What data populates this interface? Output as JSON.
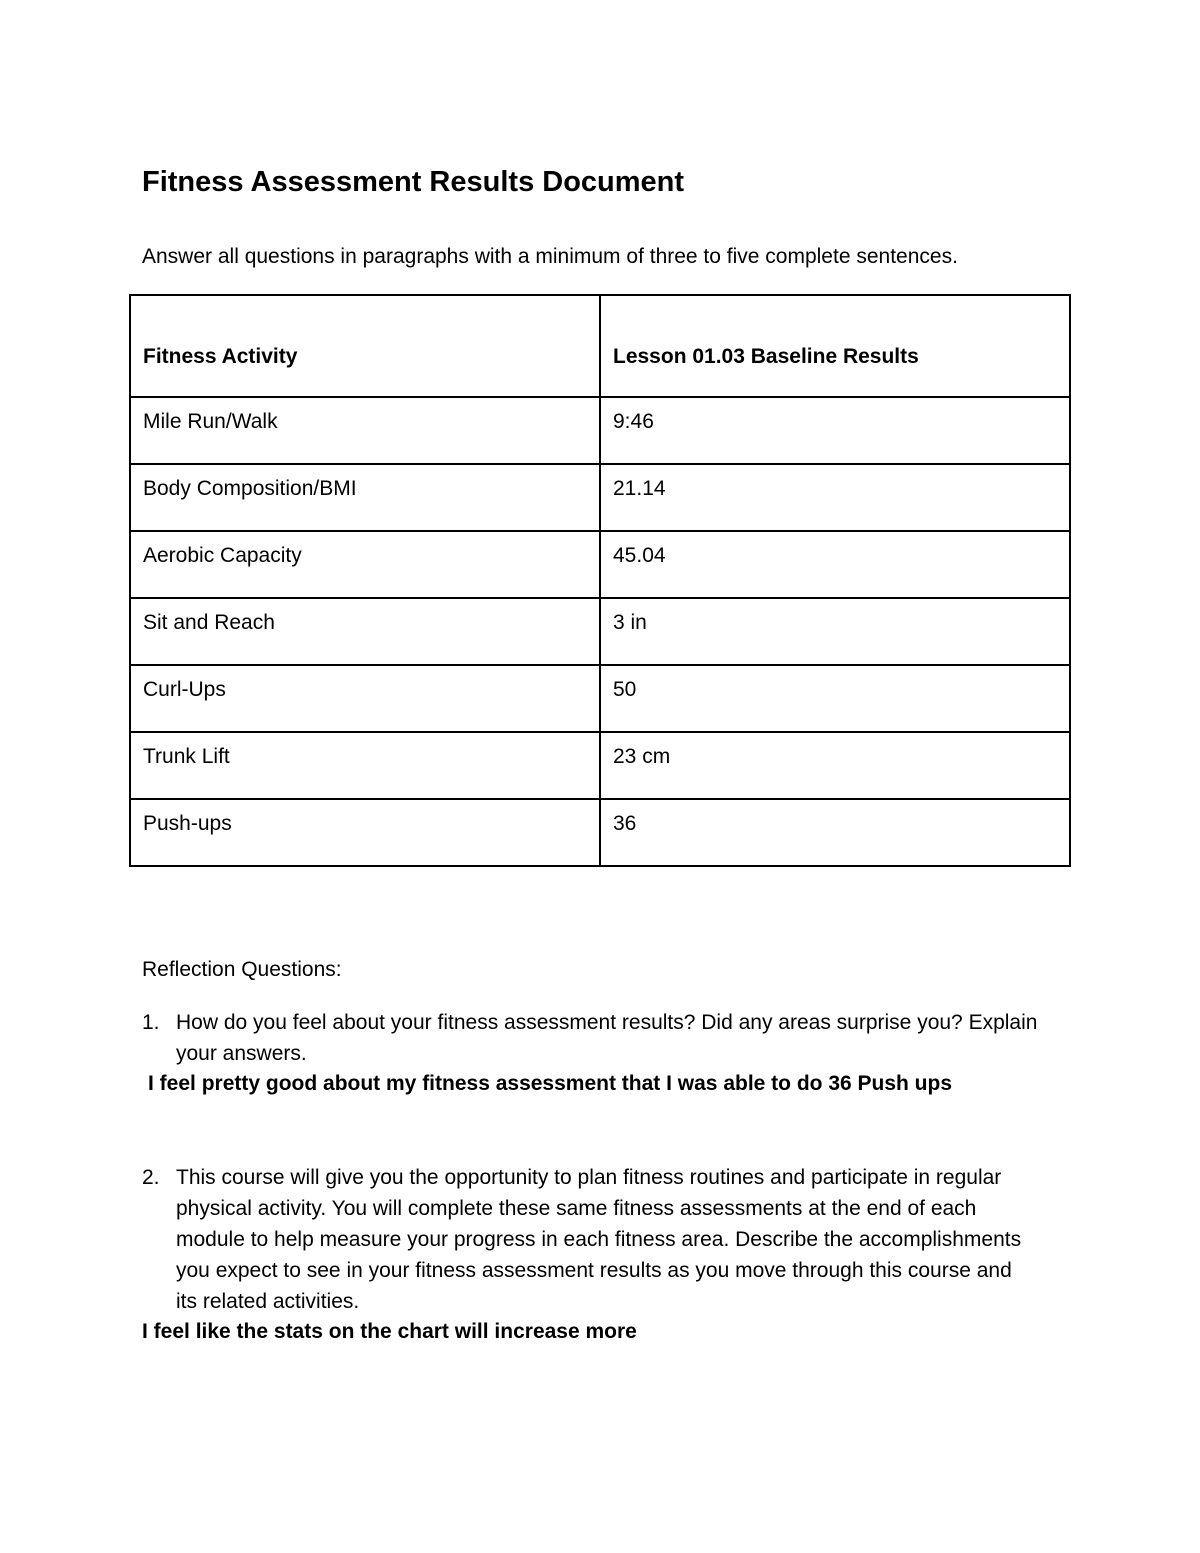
{
  "title": "Fitness Assessment Results Document",
  "intro": "Answer all questions in paragraphs with a minimum of three to five complete sentences.",
  "table": {
    "headers": [
      "Fitness Activity",
      "Lesson 01.03 Baseline Results"
    ],
    "rows": [
      [
        "Mile Run/Walk",
        "9:46"
      ],
      [
        "Body Composition/BMI",
        "21.14"
      ],
      [
        "Aerobic Capacity",
        "45.04"
      ],
      [
        "Sit and Reach",
        "3 in"
      ],
      [
        "Curl-Ups",
        "50"
      ],
      [
        "Trunk Lift",
        "23 cm"
      ],
      [
        "Push-ups",
        "36"
      ]
    ]
  },
  "reflection_label": "Reflection Questions:",
  "questions": [
    {
      "num": "1.",
      "text": "How do you feel about your fitness assessment results? Did any areas surprise you? Explain your answers.",
      "answer": "I feel pretty good about my fitness assessment that I was able to do 36 Push ups"
    },
    {
      "num": "2.",
      "text": "This course will give you the opportunity to plan fitness routines and participate in regular physical activity. You will complete these same fitness assessments at the end of each module to help measure your progress in each fitness area. Describe the accomplishments you expect to see in your fitness assessment results as you move through this course and its related activities.",
      "answer": "I feel like the stats on the chart will increase more"
    }
  ]
}
